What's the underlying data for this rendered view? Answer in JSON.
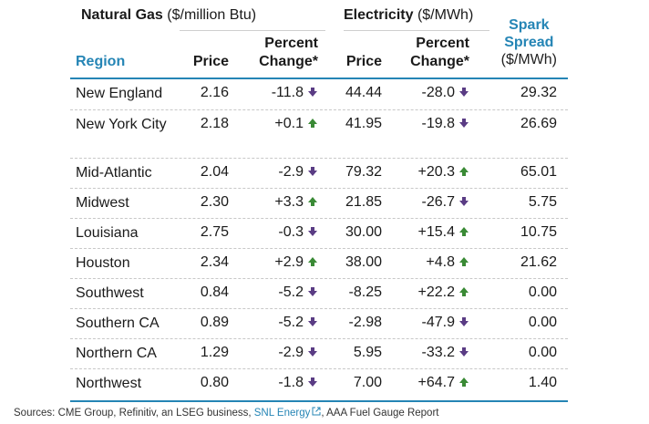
{
  "header": {
    "gas_title": "Natural Gas",
    "gas_unit": "($/million Btu)",
    "elec_title": "Electricity",
    "elec_unit": "($/MWh)",
    "spark_title_1": "Spark",
    "spark_title_2": "Spread",
    "spark_unit": "($/MWh)"
  },
  "columns": {
    "region": "Region",
    "gas_price": "Price",
    "gas_pct_1": "Percent",
    "gas_pct_2": "Change*",
    "elec_price": "Price",
    "elec_pct_1": "Percent",
    "elec_pct_2": "Change*"
  },
  "rows": [
    {
      "region": "New England",
      "gas_price": "2.16",
      "gas_pct": "-11.8",
      "gas_dir": "down",
      "elec_price": "44.44",
      "elec_pct": "-28.0",
      "elec_dir": "down",
      "spark": "29.32"
    },
    {
      "region": "New York City",
      "gas_price": "2.18",
      "gas_pct": "+0.1",
      "gas_dir": "up",
      "elec_price": "41.95",
      "elec_pct": "-19.8",
      "elec_dir": "down",
      "spark": "26.69"
    },
    {
      "region": "Mid-Atlantic",
      "gas_price": "2.04",
      "gas_pct": "-2.9",
      "gas_dir": "down",
      "elec_price": "79.32",
      "elec_pct": "+20.3",
      "elec_dir": "up",
      "spark": "65.01"
    },
    {
      "region": "Midwest",
      "gas_price": "2.30",
      "gas_pct": "+3.3",
      "gas_dir": "up",
      "elec_price": "21.85",
      "elec_pct": "-26.7",
      "elec_dir": "down",
      "spark": "5.75"
    },
    {
      "region": "Louisiana",
      "gas_price": "2.75",
      "gas_pct": "-0.3",
      "gas_dir": "down",
      "elec_price": "30.00",
      "elec_pct": "+15.4",
      "elec_dir": "up",
      "spark": "10.75"
    },
    {
      "region": "Houston",
      "gas_price": "2.34",
      "gas_pct": "+2.9",
      "gas_dir": "up",
      "elec_price": "38.00",
      "elec_pct": "+4.8",
      "elec_dir": "up",
      "spark": "21.62"
    },
    {
      "region": "Southwest",
      "gas_price": "0.84",
      "gas_pct": "-5.2",
      "gas_dir": "down",
      "elec_price": "-8.25",
      "elec_pct": "+22.2",
      "elec_dir": "up",
      "spark": "0.00"
    },
    {
      "region": "Southern CA",
      "gas_price": "0.89",
      "gas_pct": "-5.2",
      "gas_dir": "down",
      "elec_price": "-2.98",
      "elec_pct": "-47.9",
      "elec_dir": "down",
      "spark": "0.00"
    },
    {
      "region": "Northern CA",
      "gas_price": "1.29",
      "gas_pct": "-2.9",
      "gas_dir": "down",
      "elec_price": "5.95",
      "elec_pct": "-33.2",
      "elec_dir": "down",
      "spark": "0.00"
    },
    {
      "region": "Northwest",
      "gas_price": "0.80",
      "gas_pct": "-1.8",
      "gas_dir": "down",
      "elec_price": "7.00",
      "elec_pct": "+64.7",
      "elec_dir": "up",
      "spark": "1.40"
    }
  ],
  "footer": {
    "prefix": "Sources: CME Group, Refinitiv, an LSEG business, ",
    "link": "SNL Energy",
    "suffix": ", AAA Fuel Gauge Report"
  },
  "colors": {
    "accent": "#2585b5",
    "up": "#3a8a35",
    "down": "#5a3c84"
  },
  "icons": {
    "up": "up-arrow-icon",
    "down": "down-arrow-icon",
    "external": "external-link-icon"
  }
}
